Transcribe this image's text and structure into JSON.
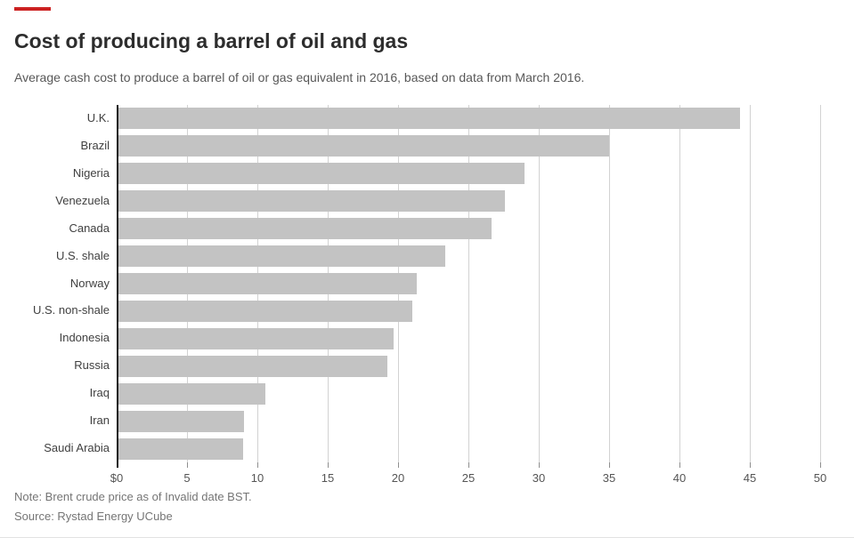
{
  "accent_color": "#cc2222",
  "header": {
    "title": "Cost of producing a barrel of oil and gas",
    "subtitle": "Average cash cost to produce a barrel of oil or gas equivalent in 2016, based on data from March 2016."
  },
  "chart_data": {
    "type": "bar",
    "orientation": "horizontal",
    "title": "Cost of producing a barrel of oil and gas",
    "subtitle": "Average cash cost to produce a barrel of oil or gas equivalent in 2016, based on data from March 2016.",
    "categories": [
      "U.K.",
      "Brazil",
      "Nigeria",
      "Venezuela",
      "Canada",
      "U.S. shale",
      "Norway",
      "U.S. non-shale",
      "Indonesia",
      "Russia",
      "Iraq",
      "Iran",
      "Saudi Arabia"
    ],
    "values": [
      44.33,
      34.99,
      28.99,
      27.62,
      26.64,
      23.35,
      21.31,
      20.99,
      19.71,
      19.21,
      10.57,
      9.08,
      8.98
    ],
    "xlim": [
      0,
      50
    ],
    "x_ticks": [
      0,
      5,
      10,
      15,
      20,
      25,
      30,
      35,
      40,
      45,
      50
    ],
    "x_tick_labels": [
      "$0",
      "5",
      "10",
      "15",
      "20",
      "25",
      "30",
      "35",
      "40",
      "45",
      "50"
    ],
    "grid": true,
    "legend": "none",
    "bar_color": "#c3c3c3",
    "gridline_color": "#d2d2d2",
    "axis_line_color": "#1a1a1a"
  },
  "footer": {
    "note": "Note: Brent crude price as of Invalid date BST.",
    "source": "Source: Rystad Energy UCube"
  }
}
